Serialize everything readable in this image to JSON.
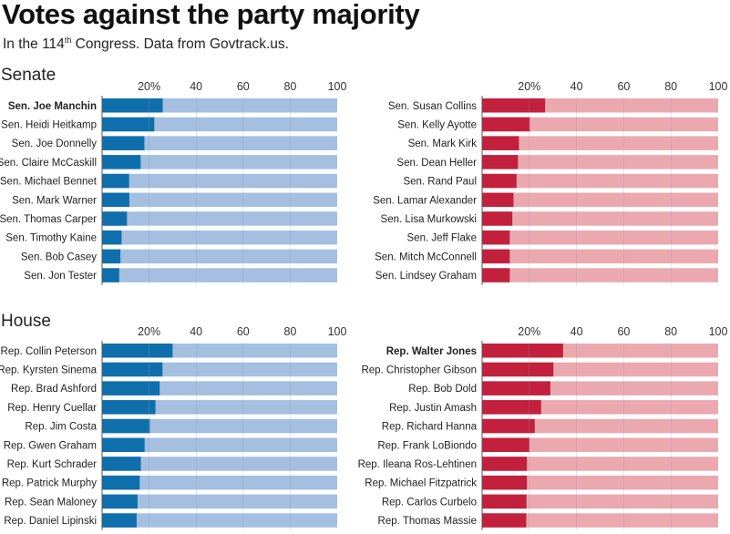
{
  "title": "Votes against the party majority",
  "subtitle": {
    "prefix": "In the 114",
    "sup": "th",
    "suffix": " Congress. Data from Govtrack.us."
  },
  "sections": {
    "senate": "Senate",
    "house": "House"
  },
  "colors": {
    "dem_bar": "#0f6fac",
    "dem_track": "#a4bfe0",
    "rep_bar": "#c2203d",
    "rep_track": "#eba9af",
    "grid": "#8a9bb0"
  },
  "chart_data": [
    {
      "type": "bar",
      "orientation": "horizontal",
      "id": "senate-democrats",
      "title": "Senate",
      "party": "Democrat",
      "xlim": [
        0,
        100
      ],
      "xticks": [
        20,
        40,
        60,
        80,
        100
      ],
      "xtick_labels": [
        "20%",
        "40",
        "60",
        "80",
        "100"
      ],
      "grid": true,
      "categories": [
        "Sen. Joe Manchin",
        "Sen. Heidi Heitkamp",
        "Sen. Joe Donnelly",
        "Sen. Claire McCaskill",
        "Sen. Michael Bennet",
        "Sen. Mark Warner",
        "Sen. Thomas Carper",
        "Sen. Timothy Kaine",
        "Sen. Bob Casey",
        "Sen. Jon Tester"
      ],
      "values": [
        25.8,
        22.2,
        18.0,
        16.4,
        11.5,
        11.6,
        10.6,
        8.3,
        7.8,
        7.3
      ],
      "highlight": [
        0
      ]
    },
    {
      "type": "bar",
      "orientation": "horizontal",
      "id": "senate-republicans",
      "title": "Senate",
      "party": "Republican",
      "xlim": [
        0,
        100
      ],
      "xticks": [
        20,
        40,
        60,
        80,
        100
      ],
      "xtick_labels": [
        "20%",
        "40",
        "60",
        "80",
        "100"
      ],
      "grid": true,
      "categories": [
        "Sen. Susan Collins",
        "Sen. Kelly Ayotte",
        "Sen. Mark Kirk",
        "Sen. Dean Heller",
        "Sen. Rand Paul",
        "Sen. Lamar Alexander",
        "Sen. Lisa Murkowski",
        "Sen. Jeff Flake",
        "Sen. Mitch McConnell",
        "Sen. Lindsey Graham"
      ],
      "values": [
        26.7,
        20.2,
        15.6,
        15.2,
        14.6,
        13.3,
        12.8,
        11.7,
        11.7,
        11.7
      ],
      "highlight": []
    },
    {
      "type": "bar",
      "orientation": "horizontal",
      "id": "house-democrats",
      "title": "House",
      "party": "Democrat",
      "xlim": [
        0,
        100
      ],
      "xticks": [
        20,
        40,
        60,
        80,
        100
      ],
      "xtick_labels": [
        "20%",
        "40",
        "60",
        "80",
        "100"
      ],
      "grid": true,
      "categories": [
        "Rep. Collin Peterson",
        "Rep. Kyrsten Sinema",
        "Rep. Brad Ashford",
        "Rep. Henry Cuellar",
        "Rep. Jim Costa",
        "Rep. Gwen Graham",
        "Rep. Kurt Schrader",
        "Rep. Patrick Murphy",
        "Rep. Sean Maloney",
        "Rep. Daniel Lipinski"
      ],
      "values": [
        30.0,
        25.7,
        24.5,
        22.7,
        20.3,
        18.1,
        16.5,
        16.0,
        15.1,
        14.7
      ],
      "highlight": []
    },
    {
      "type": "bar",
      "orientation": "horizontal",
      "id": "house-republicans",
      "title": "House",
      "party": "Republican",
      "xlim": [
        0,
        100
      ],
      "xticks": [
        20,
        40,
        60,
        80,
        100
      ],
      "xtick_labels": [
        "20%",
        "40",
        "60",
        "80",
        "100"
      ],
      "grid": true,
      "categories": [
        "Rep. Walter Jones",
        "Rep. Christopher Gibson",
        "Rep. Bob Dold",
        "Rep. Justin Amash",
        "Rep. Richard Hanna",
        "Rep. Frank LoBiondo",
        "Rep. Ileana Ros-Lehtinen",
        "Rep. Michael Fitzpatrick",
        "Rep. Carlos Curbelo",
        "Rep. Thomas Massie"
      ],
      "values": [
        34.3,
        30.2,
        28.9,
        25.0,
        22.3,
        20.0,
        19.0,
        19.0,
        18.8,
        18.7
      ],
      "highlight": [
        0
      ]
    }
  ]
}
